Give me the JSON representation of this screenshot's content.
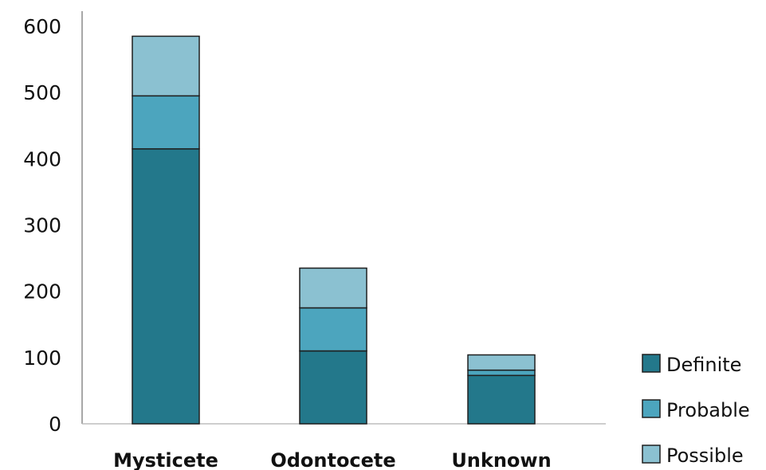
{
  "chart_data": {
    "type": "bar",
    "stacked": true,
    "categories": [
      "Mysticete",
      "Odontocete",
      "Unknown"
    ],
    "series": [
      {
        "name": "Definite",
        "values": [
          415,
          110,
          73
        ],
        "color": "#23788b"
      },
      {
        "name": "Probable",
        "values": [
          80,
          65,
          8
        ],
        "color": "#4ca5be"
      },
      {
        "name": "Possible",
        "values": [
          90,
          60,
          23
        ],
        "color": "#8bc1d1"
      }
    ],
    "ylim": [
      0,
      600
    ],
    "yticks": [
      0,
      100,
      200,
      300,
      400,
      500,
      600
    ],
    "grid": false,
    "legend": "bottom-right",
    "xlabel": "",
    "ylabel": "",
    "title": ""
  }
}
